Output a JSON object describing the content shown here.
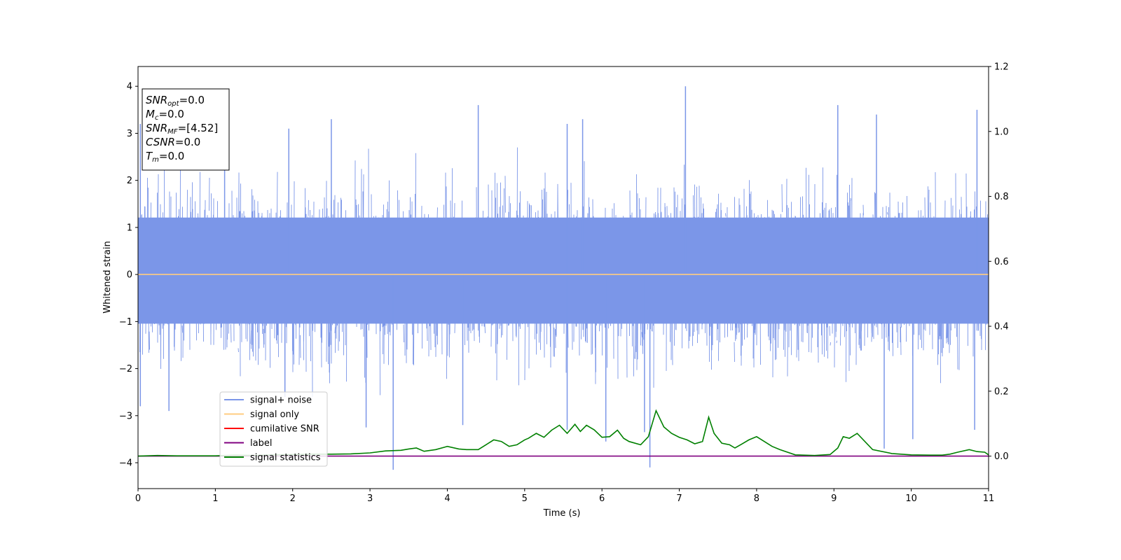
{
  "chart_data": {
    "type": "line",
    "xlabel": "Time (s)",
    "ylabel": "Whitened strain",
    "xlim": [
      0,
      11
    ],
    "ylim": [
      -4.55,
      4.42
    ],
    "y2lim": [
      -0.1,
      1.2
    ],
    "x_ticks": [
      "0",
      "1",
      "2",
      "3",
      "4",
      "5",
      "6",
      "7",
      "8",
      "9",
      "10",
      "11"
    ],
    "y_ticks": [
      "4",
      "3",
      "2",
      "1",
      "0",
      "−1",
      "−2",
      "−3",
      "−4"
    ],
    "y2_ticks": [
      "1.2",
      "1.0",
      "0.8",
      "0.6",
      "0.4",
      "0.2",
      "0.0"
    ],
    "grid": false,
    "legend_placement": "lower-left",
    "annotation_box": {
      "lines": [
        {
          "base": "SNR",
          "sub": "opt",
          "value": "=0.0"
        },
        {
          "base": "M",
          "sub": "c",
          "value": "=0.0"
        },
        {
          "base": "SNR",
          "sub": "MF",
          "value": "=[4.52]"
        },
        {
          "base": "CSNR",
          "sub": "",
          "value": "=0.0"
        },
        {
          "base": "T",
          "sub": "m",
          "value": "=0.0"
        }
      ]
    },
    "series": [
      {
        "name": "signal+ noise",
        "color": "#7b96e8",
        "axis": "left",
        "kind": "white-noise",
        "typical_extent": [
          -1.9,
          2.2
        ],
        "peaks_max": [
          [
            0.03,
            3.2
          ],
          [
            1.12,
            2.9
          ],
          [
            1.95,
            3.1
          ],
          [
            2.5,
            3.3
          ],
          [
            4.4,
            3.6
          ],
          [
            5.55,
            3.2
          ],
          [
            5.75,
            3.3
          ],
          [
            7.08,
            4.0
          ],
          [
            9.05,
            3.6
          ],
          [
            9.55,
            3.4
          ],
          [
            10.85,
            3.5
          ]
        ],
        "peaks_min": [
          [
            0.03,
            -2.8
          ],
          [
            0.4,
            -2.9
          ],
          [
            1.9,
            -2.6
          ],
          [
            2.95,
            -3.25
          ],
          [
            3.3,
            -4.15
          ],
          [
            4.2,
            -3.2
          ],
          [
            5.55,
            -3.3
          ],
          [
            6.05,
            -3.55
          ],
          [
            6.55,
            -3.35
          ],
          [
            6.62,
            -4.1
          ],
          [
            9.65,
            -3.7
          ],
          [
            10.02,
            -3.5
          ],
          [
            10.82,
            -3.3
          ]
        ]
      },
      {
        "name": "signal only",
        "color": "#ffcc80",
        "axis": "left",
        "x": [
          0,
          11
        ],
        "y": [
          0,
          0
        ]
      },
      {
        "name": "cumilative SNR",
        "color": "#ff0000",
        "axis": "left",
        "x": [],
        "y": []
      },
      {
        "name": "label",
        "color": "#800080",
        "axis": "right",
        "x": [
          0,
          11
        ],
        "y": [
          0,
          0
        ]
      },
      {
        "name": "signal statistics",
        "color": "#008000",
        "axis": "right",
        "x": [
          0,
          0.25,
          0.5,
          0.75,
          1.0,
          1.25,
          1.5,
          1.75,
          2.0,
          2.25,
          2.5,
          2.75,
          3.0,
          3.2,
          3.4,
          3.5,
          3.6,
          3.7,
          3.85,
          4.0,
          4.15,
          4.25,
          4.4,
          4.5,
          4.6,
          4.7,
          4.8,
          4.9,
          5.0,
          5.05,
          5.15,
          5.25,
          5.35,
          5.45,
          5.55,
          5.65,
          5.72,
          5.8,
          5.9,
          6.0,
          6.1,
          6.2,
          6.28,
          6.35,
          6.5,
          6.6,
          6.7,
          6.8,
          6.9,
          7.0,
          7.1,
          7.2,
          7.3,
          7.38,
          7.45,
          7.55,
          7.65,
          7.72,
          7.8,
          7.9,
          8.0,
          8.1,
          8.2,
          8.3,
          8.5,
          8.75,
          8.95,
          9.05,
          9.12,
          9.2,
          9.3,
          9.5,
          9.75,
          10.0,
          10.25,
          10.4,
          10.5,
          10.6,
          10.75,
          10.85,
          10.95,
          11.0
        ],
        "y": [
          0.0,
          0.002,
          0.001,
          0.001,
          0.001,
          0.003,
          0.002,
          0.004,
          0.005,
          0.006,
          0.006,
          0.007,
          0.01,
          0.016,
          0.018,
          0.022,
          0.025,
          0.015,
          0.02,
          0.03,
          0.022,
          0.02,
          0.02,
          0.035,
          0.05,
          0.045,
          0.03,
          0.035,
          0.05,
          0.055,
          0.07,
          0.058,
          0.08,
          0.095,
          0.07,
          0.098,
          0.076,
          0.095,
          0.081,
          0.058,
          0.06,
          0.08,
          0.055,
          0.045,
          0.035,
          0.06,
          0.14,
          0.09,
          0.07,
          0.058,
          0.05,
          0.038,
          0.045,
          0.12,
          0.07,
          0.04,
          0.035,
          0.025,
          0.036,
          0.05,
          0.06,
          0.045,
          0.03,
          0.02,
          0.004,
          0.002,
          0.005,
          0.025,
          0.06,
          0.055,
          0.07,
          0.02,
          0.008,
          0.004,
          0.003,
          0.003,
          0.006,
          0.012,
          0.02,
          0.014,
          0.012,
          0.004
        ]
      }
    ]
  }
}
